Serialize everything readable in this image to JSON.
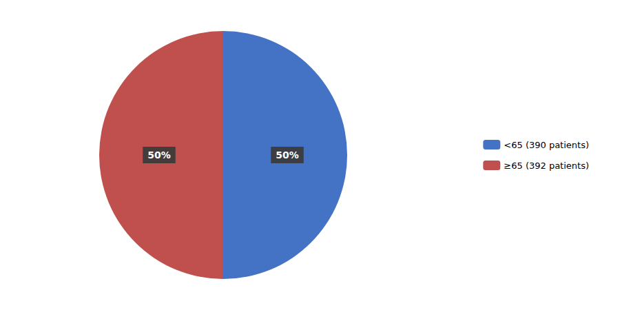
{
  "chart_data": {
    "type": "pie",
    "categories": [
      "<65 (390 patients)",
      "≥65 (392 patients)"
    ],
    "values": [
      50,
      50
    ],
    "value_labels": [
      "50%",
      "50%"
    ],
    "data_labels": true,
    "colors": [
      "#4472C4",
      "#C0504D"
    ],
    "legend": "right"
  }
}
